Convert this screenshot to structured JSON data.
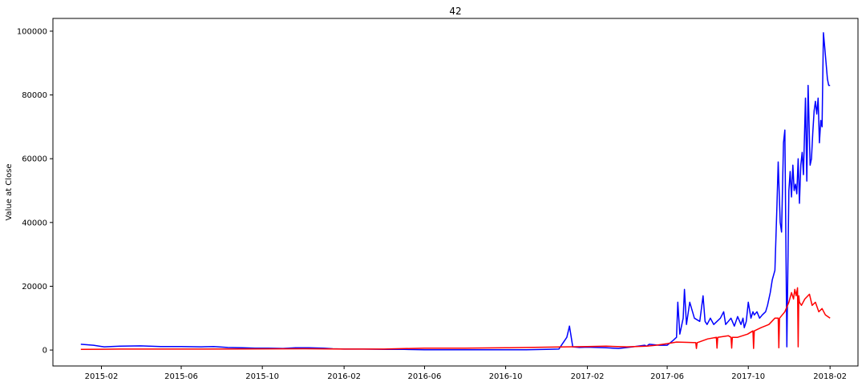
{
  "chart_data": {
    "type": "line",
    "title": "42",
    "xlabel": "",
    "ylabel": "Value at Close",
    "xlim": [
      "2014-11-20",
      "2018-03-15"
    ],
    "ylim": [
      -5000,
      104000
    ],
    "grid": false,
    "legend": "none",
    "x_ticks": [
      "2015-02",
      "2015-06",
      "2015-10",
      "2016-02",
      "2016-06",
      "2016-10",
      "2017-02",
      "2017-06",
      "2017-10",
      "2018-02"
    ],
    "y_ticks": [
      0,
      20000,
      40000,
      60000,
      80000,
      100000
    ],
    "series": [
      {
        "color": "#0000ff",
        "x": [
          "2015-01-01",
          "2015-01-20",
          "2015-02-05",
          "2015-03-01",
          "2015-04-01",
          "2015-05-01",
          "2015-06-01",
          "2015-07-01",
          "2015-07-20",
          "2015-08-10",
          "2015-09-01",
          "2015-09-20",
          "2015-10-10",
          "2015-11-01",
          "2015-11-20",
          "2015-12-10",
          "2016-01-01",
          "2016-01-15",
          "2016-02-01",
          "2016-03-01",
          "2016-04-01",
          "2016-05-01",
          "2016-06-01",
          "2016-07-01",
          "2016-08-01",
          "2016-09-01",
          "2016-10-01",
          "2016-11-01",
          "2016-12-01",
          "2016-12-20",
          "2017-01-01",
          "2017-01-05",
          "2017-01-10",
          "2017-01-20",
          "2017-02-01",
          "2017-02-15",
          "2017-03-01",
          "2017-03-20",
          "2017-04-10",
          "2017-04-28",
          "2017-05-01",
          "2017-05-05",
          "2017-05-20",
          "2017-06-01",
          "2017-06-10",
          "2017-06-15",
          "2017-06-17",
          "2017-06-20",
          "2017-06-25",
          "2017-06-27",
          "2017-06-30",
          "2017-07-05",
          "2017-07-12",
          "2017-07-20",
          "2017-07-25",
          "2017-07-28",
          "2017-07-31",
          "2017-08-05",
          "2017-08-10",
          "2017-08-15",
          "2017-08-20",
          "2017-08-25",
          "2017-08-28",
          "2017-09-01",
          "2017-09-05",
          "2017-09-10",
          "2017-09-15",
          "2017-09-20",
          "2017-09-23",
          "2017-09-25",
          "2017-09-28",
          "2017-10-01",
          "2017-10-05",
          "2017-10-08",
          "2017-10-10",
          "2017-10-14",
          "2017-10-18",
          "2017-10-22",
          "2017-10-27",
          "2017-10-30",
          "2017-11-03",
          "2017-11-06",
          "2017-11-10",
          "2017-11-13",
          "2017-11-15",
          "2017-11-18",
          "2017-11-20",
          "2017-11-23",
          "2017-11-25",
          "2017-11-28",
          "2017-12-01",
          "2017-12-03",
          "2017-12-05",
          "2017-12-07",
          "2017-12-09",
          "2017-12-11",
          "2017-12-13",
          "2017-12-15",
          "2017-12-17",
          "2017-12-19",
          "2017-12-21",
          "2017-12-23",
          "2017-12-26",
          "2017-12-28",
          "2017-12-30",
          "2018-01-02",
          "2018-01-04",
          "2018-01-06",
          "2018-01-08",
          "2018-01-10",
          "2018-01-12",
          "2018-01-14",
          "2018-01-16",
          "2018-01-18",
          "2018-01-20",
          "2018-01-22",
          "2018-01-24",
          "2018-01-26",
          "2018-01-28",
          "2018-01-30",
          "2018-02-01"
        ],
        "values": [
          1800,
          1500,
          1000,
          1200,
          1300,
          1100,
          1100,
          1000,
          1100,
          800,
          700,
          600,
          600,
          500,
          700,
          700,
          600,
          400,
          300,
          300,
          200,
          200,
          100,
          100,
          100,
          100,
          100,
          100,
          200,
          300,
          4000,
          7500,
          1000,
          800,
          900,
          800,
          700,
          500,
          1000,
          1500,
          1200,
          1800,
          1500,
          1500,
          3000,
          4000,
          15000,
          5000,
          10000,
          19000,
          8000,
          15000,
          10000,
          9000,
          17000,
          9000,
          8000,
          10000,
          8000,
          9000,
          10000,
          12000,
          8000,
          9000,
          10000,
          7500,
          10500,
          8000,
          10000,
          7000,
          9000,
          15000,
          10000,
          12000,
          11000,
          12000,
          10000,
          11000,
          12000,
          14000,
          18000,
          22000,
          25000,
          45000,
          59000,
          40000,
          37000,
          65000,
          69000,
          1000,
          50000,
          56000,
          48000,
          58000,
          50000,
          52000,
          49000,
          60000,
          46000,
          58000,
          62000,
          55000,
          79000,
          53000,
          83000,
          58000,
          60000,
          68000,
          75000,
          78000,
          74000,
          79000,
          65000,
          72000,
          70000,
          99500,
          95000,
          90000,
          85000,
          83000,
          83000
        ]
      },
      {
        "color": "#ff0000",
        "x": [
          "2015-01-01",
          "2015-03-01",
          "2015-06-01",
          "2015-09-01",
          "2015-12-01",
          "2016-02-01",
          "2016-04-01",
          "2016-06-01",
          "2016-08-01",
          "2016-10-01",
          "2016-12-01",
          "2017-02-01",
          "2017-03-01",
          "2017-04-01",
          "2017-05-01",
          "2017-05-15",
          "2017-06-01",
          "2017-06-15",
          "2017-07-01",
          "2017-07-14",
          "2017-07-15",
          "2017-07-16",
          "2017-08-01",
          "2017-08-14",
          "2017-08-15",
          "2017-08-16",
          "2017-09-01",
          "2017-09-05",
          "2017-09-06",
          "2017-09-07",
          "2017-09-15",
          "2017-09-30",
          "2017-10-08",
          "2017-10-09",
          "2017-10-10",
          "2017-10-20",
          "2017-11-01",
          "2017-11-10",
          "2017-11-15",
          "2017-11-16",
          "2017-11-17",
          "2017-11-25",
          "2017-12-01",
          "2017-12-05",
          "2017-12-08",
          "2017-12-10",
          "2017-12-12",
          "2017-12-14",
          "2017-12-15",
          "2017-12-16",
          "2017-12-17",
          "2017-12-20",
          "2017-12-25",
          "2018-01-01",
          "2018-01-05",
          "2018-01-10",
          "2018-01-15",
          "2018-01-20",
          "2018-01-25",
          "2018-02-01"
        ],
        "values": [
          200,
          300,
          300,
          350,
          400,
          300,
          300,
          600,
          600,
          700,
          900,
          1100,
          1200,
          1000,
          1200,
          1500,
          2000,
          2500,
          2400,
          2300,
          500,
          2300,
          3500,
          4000,
          600,
          4000,
          4500,
          4000,
          600,
          4000,
          4000,
          5000,
          6000,
          500,
          6000,
          7000,
          8000,
          10000,
          10000,
          700,
          10000,
          12000,
          15000,
          18000,
          16000,
          19000,
          17000,
          19500,
          1000,
          17000,
          15000,
          14000,
          16000,
          17500,
          14000,
          15000,
          12000,
          13000,
          11000,
          10000
        ]
      }
    ]
  }
}
